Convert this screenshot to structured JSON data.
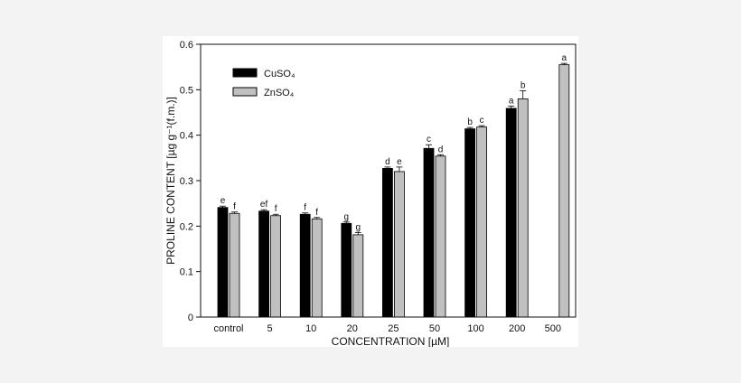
{
  "chart_data": {
    "type": "bar",
    "title": "",
    "xlabel": "CONCENTRATION  [µM]",
    "ylabel": "PROLINE CONTENT  [µg g⁻¹(f.m.)]",
    "ylim": [
      0,
      0.6
    ],
    "yticks": [
      "0",
      "0.1",
      "0.2",
      "0.3",
      "0.4",
      "0.5",
      "0.6"
    ],
    "grid": false,
    "legend_position": "top-left",
    "categories": [
      "control",
      "5",
      "10",
      "20",
      "25",
      "50",
      "100",
      "200",
      "500"
    ],
    "series": [
      {
        "name": "CuSO₄",
        "color": "#000000",
        "values": [
          0.241,
          0.233,
          0.226,
          0.206,
          0.327,
          0.371,
          0.414,
          0.459,
          null
        ],
        "errors": [
          0.003,
          0.003,
          0.003,
          0.003,
          0.003,
          0.008,
          0.003,
          0.005,
          null
        ],
        "labels": [
          "e",
          "ef",
          "f",
          "g",
          "d",
          "c",
          "b",
          "a",
          ""
        ]
      },
      {
        "name": "ZnSO₄",
        "color": "#c0c0c0",
        "values": [
          0.228,
          0.223,
          0.216,
          0.181,
          0.32,
          0.354,
          0.418,
          0.48,
          0.555
        ],
        "errors": [
          0.003,
          0.003,
          0.003,
          0.005,
          0.01,
          0.003,
          0.003,
          0.018,
          0.003
        ],
        "labels": [
          "f",
          "f",
          "f",
          "g",
          "e",
          "d",
          "c",
          "b",
          "a"
        ]
      }
    ]
  }
}
